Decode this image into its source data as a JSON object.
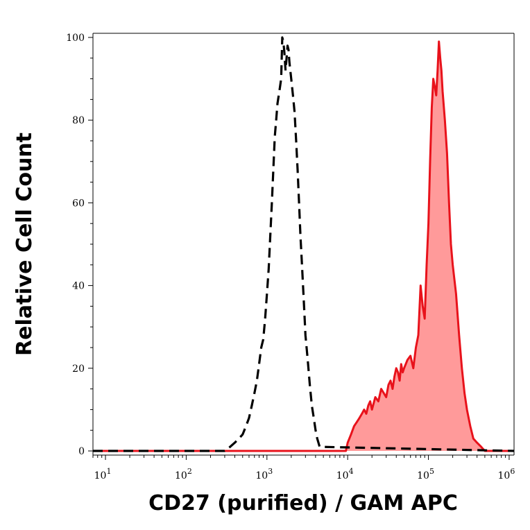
{
  "chart_data": {
    "type": "area",
    "xlabel": "CD27 (purified) / GAM APC",
    "ylabel": "Relative Cell Count",
    "x_scale": "log",
    "xlim": [
      7,
      1150000
    ],
    "ylim": [
      -1,
      101
    ],
    "x_ticks": [
      {
        "value": 10,
        "base": "10",
        "exp": "1"
      },
      {
        "value": 100,
        "base": "10",
        "exp": "2"
      },
      {
        "value": 1000,
        "base": "10",
        "exp": "3"
      },
      {
        "value": 10000,
        "base": "10",
        "exp": "4"
      },
      {
        "value": 100000,
        "base": "10",
        "exp": "5"
      },
      {
        "value": 1000000,
        "base": "10",
        "exp": "6"
      }
    ],
    "y_ticks": [
      0,
      20,
      40,
      60,
      80,
      100
    ],
    "grid": false,
    "series": [
      {
        "style": "dashed-black-outline",
        "color": "#000000",
        "fill": "none",
        "x": [
          7,
          300,
          350,
          400,
          450,
          500,
          550,
          600,
          650,
          700,
          750,
          800,
          850,
          900,
          950,
          1000,
          1050,
          1100,
          1150,
          1200,
          1250,
          1300,
          1350,
          1400,
          1450,
          1500,
          1550,
          1600,
          1650,
          1700,
          1750,
          1800,
          1850,
          1900,
          1950,
          2000,
          2100,
          2200,
          2300,
          2400,
          2500,
          2600,
          2700,
          2800,
          2900,
          3000,
          3200,
          3400,
          3600,
          3800,
          4000,
          4200,
          4500,
          1150000
        ],
        "y": [
          0,
          0,
          1,
          2,
          3,
          4,
          6,
          8,
          11,
          14,
          17,
          21,
          25,
          27,
          32,
          38,
          44,
          52,
          60,
          68,
          76,
          80,
          84,
          86,
          88,
          90,
          100,
          99,
          96,
          92,
          95,
          98,
          97,
          94,
          92,
          90,
          86,
          82,
          75,
          68,
          60,
          52,
          46,
          40,
          34,
          28,
          22,
          16,
          11,
          8,
          5,
          3,
          1,
          0
        ]
      },
      {
        "style": "red-filled",
        "color": "#e8121b",
        "fill": "#ff9a9a",
        "x": [
          7,
          9500,
          10000,
          11000,
          12000,
          13000,
          14000,
          15000,
          16000,
          17000,
          18000,
          19000,
          20000,
          22000,
          24000,
          26000,
          28000,
          30000,
          32000,
          34000,
          36000,
          38000,
          40000,
          42000,
          44000,
          46000,
          48000,
          50000,
          55000,
          60000,
          65000,
          70000,
          75000,
          80000,
          85000,
          90000,
          95000,
          100000,
          105000,
          110000,
          115000,
          120000,
          125000,
          130000,
          135000,
          140000,
          145000,
          150000,
          160000,
          170000,
          180000,
          190000,
          200000,
          220000,
          240000,
          260000,
          280000,
          300000,
          330000,
          360000,
          400000,
          450000,
          500000,
          1150000
        ],
        "y": [
          0,
          0,
          2,
          4,
          6,
          7,
          8,
          9,
          10,
          9,
          11,
          12,
          10,
          13,
          12,
          15,
          14,
          13,
          16,
          17,
          15,
          18,
          20,
          19,
          17,
          21,
          19,
          20,
          22,
          23,
          20,
          25,
          28,
          40,
          35,
          32,
          45,
          55,
          70,
          83,
          90,
          88,
          86,
          92,
          99,
          95,
          92,
          87,
          80,
          72,
          60,
          50,
          45,
          38,
          28,
          20,
          14,
          10,
          6,
          3,
          2,
          1,
          0,
          0
        ]
      }
    ]
  }
}
